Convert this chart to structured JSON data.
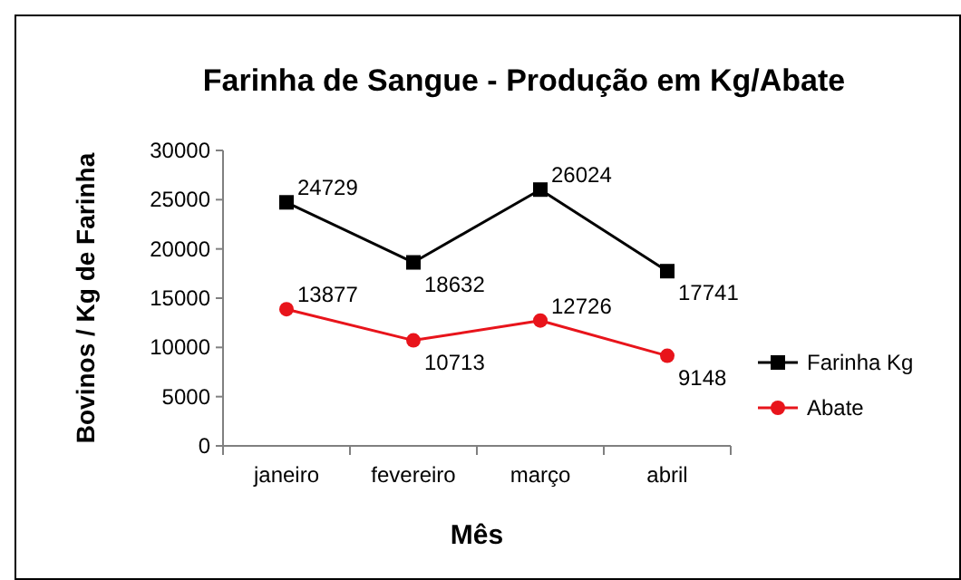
{
  "chart_data": {
    "type": "line",
    "title": "Farinha de Sangue - Produção em Kg/Abate",
    "xlabel": "Mês",
    "ylabel": "Bovinos / Kg de Farinha",
    "categories": [
      "janeiro",
      "fevereiro",
      "março",
      "abril"
    ],
    "series": [
      {
        "name": "Farinha Kg",
        "color": "#000000",
        "marker": "square",
        "values": [
          24729,
          18632,
          26024,
          17741
        ]
      },
      {
        "name": "Abate",
        "color": "#e8141b",
        "marker": "circle",
        "values": [
          13877,
          10713,
          12726,
          9148
        ]
      }
    ],
    "ylim": [
      0,
      30000
    ],
    "yticks": [
      0,
      5000,
      10000,
      15000,
      20000,
      25000,
      30000
    ],
    "grid": false,
    "legend": "right",
    "data_labels": true
  }
}
